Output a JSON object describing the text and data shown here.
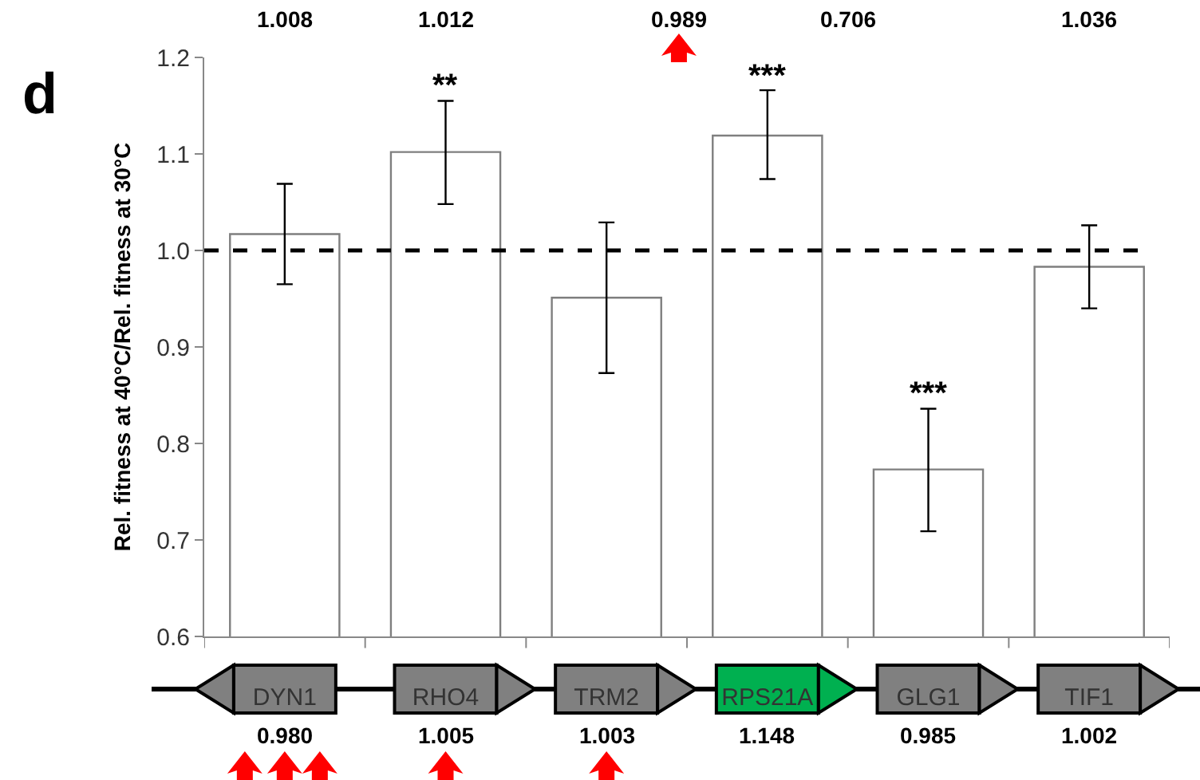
{
  "chart_data": {
    "type": "bar",
    "ylabel": "Rel. fitness at 40°C/Rel. fitness at 30°C",
    "categories": [
      "DYN1",
      "RHO4",
      "TRM2",
      "RPS21A",
      "GLG1",
      "TIF1"
    ],
    "values": [
      1.017,
      1.102,
      0.951,
      1.119,
      0.773,
      0.983
    ],
    "errors": [
      [
        0.965,
        1.069
      ],
      [
        1.048,
        1.155
      ],
      [
        0.873,
        1.029
      ],
      [
        1.074,
        1.166
      ],
      [
        0.709,
        0.836
      ],
      [
        0.94,
        1.026
      ]
    ],
    "color": "#ffffff",
    "ylim": [
      0.6,
      1.2
    ],
    "yticks": [
      0.6,
      0.7,
      0.8,
      0.9,
      {
        "value": 1,
        "label": "1.0"
      },
      1.1,
      1.2
    ],
    "grid": false,
    "ref_lines": [
      {
        "axis": "y",
        "value": 1,
        "label": null,
        "color": "#000000",
        "line_style": "dashed"
      }
    ],
    "annotations": [
      "d",
      "1.008",
      "1.012",
      "0.989",
      "0.706",
      "1.036",
      "0.980",
      "1.005",
      "1.003",
      "1.148",
      "0.985",
      "1.002",
      {
        "text": "**",
        "x": "RHO4",
        "y": 1.155
      },
      {
        "text": "***",
        "x": "RPS21A",
        "y": 1.166
      },
      {
        "text": "***",
        "x": "GLG1",
        "y": 0.836
      }
    ]
  }
}
